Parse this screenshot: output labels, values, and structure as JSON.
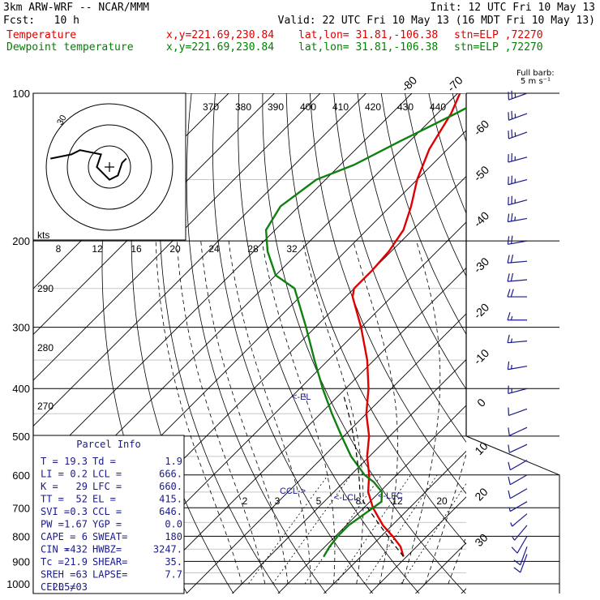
{
  "header": {
    "model": "3km ARW-WRF -- NCAR/MMM",
    "init": "Init: 12 UTC Fri 10 May 13",
    "fcst": "Fcst:   10 h",
    "valid": "Valid: 22 UTC Fri 10 May 13 (16 MDT Fri 10 May 13)",
    "temp_label": "Temperature",
    "dewp_label": "Dewpoint temperature",
    "xy": "x,y=221.69,230.84",
    "latlon": "lat,lon= 31.81,-106.38",
    "stn": "stn=ELP ,72270"
  },
  "colors": {
    "temperature": "#e00000",
    "dewpoint": "#108010",
    "barbs": "#1a1a8c",
    "panel": "#1a1a8c"
  },
  "barb_legend": {
    "line1": "Full barb:",
    "line2": "5 m s⁻¹"
  },
  "hodograph": {
    "units": "kts",
    "ring_label": "30",
    "tick_labels": [
      "8",
      "12",
      "16",
      "20",
      "24",
      "28",
      "32"
    ]
  },
  "labels": {
    "lcl": "<-LCL",
    "lfc": "<-LFC",
    "el": "<-EL",
    "ccl": "CCL->",
    "mixing_ratios": [
      "2",
      "3",
      "5",
      "8",
      "12",
      "20"
    ],
    "theta": [
      "290",
      "280",
      "270"
    ]
  },
  "parcel_info": {
    "title": "Parcel Info",
    "rows": [
      [
        "T  =",
        "19.3",
        "Td =",
        "1.9"
      ],
      [
        "LI =",
        "0.2",
        "LCL =",
        "666."
      ],
      [
        "K  =",
        "29",
        "LFC =",
        "660."
      ],
      [
        "TT =",
        "52",
        "EL =",
        "415."
      ],
      [
        "SVI =",
        "0.3",
        "CCL =",
        "646."
      ],
      [
        "PW =",
        "1.67",
        "YGP =",
        "0.0"
      ],
      [
        "CAPE =",
        "6",
        "SWEAT=",
        "180"
      ],
      [
        "CIN =",
        "-432",
        "HWBZ=",
        "3247."
      ],
      [
        "Tc =",
        "21.9",
        "SHEAR=",
        "35."
      ],
      [
        "SREH =",
        "63",
        "LAPSE=",
        "7.7"
      ],
      [
        "CELL =",
        "205/03",
        "",
        ""
      ]
    ]
  },
  "chart_data": {
    "type": "skew-t",
    "pressure_levels": [
      100,
      200,
      300,
      400,
      500,
      600,
      700,
      800,
      900,
      1000
    ],
    "isotherms_c": [
      -80,
      -70,
      -60,
      -50,
      -40,
      -30,
      -20,
      -10,
      0,
      10,
      20,
      30,
      40
    ],
    "theta_e_labels": [
      370,
      380,
      390,
      400,
      410,
      420,
      430,
      440
    ],
    "series": [
      {
        "name": "Temperature",
        "p": [
          880,
          840,
          800,
          760,
          700,
          650,
          600,
          550,
          500,
          450,
          400,
          350,
          300,
          260,
          250,
          230,
          210,
          190,
          170,
          150,
          130,
          110,
          100
        ],
        "t": [
          19.3,
          16.5,
          12.5,
          8.0,
          2.0,
          -2.5,
          -6.0,
          -10.5,
          -14.5,
          -20.0,
          -25.0,
          -31.5,
          -40.0,
          -48.5,
          -50.0,
          -50.0,
          -50.5,
          -52.0,
          -55.5,
          -60.0,
          -64.0,
          -67.0,
          -69.5
        ]
      },
      {
        "name": "Dewpoint temperature",
        "p": [
          880,
          840,
          800,
          760,
          720,
          680,
          650,
          620,
          600,
          550,
          500,
          450,
          400,
          350,
          300,
          250,
          235,
          210,
          190,
          170,
          150,
          140,
          125,
          110,
          100
        ],
        "td": [
          1.9,
          1.0,
          0.5,
          0.5,
          1.5,
          2.5,
          0.5,
          -3.5,
          -7.0,
          -14.0,
          -20.5,
          -27.5,
          -35.0,
          -43.0,
          -52.0,
          -63.0,
          -70.0,
          -77.0,
          -82.0,
          -84.0,
          -82.0,
          -77.0,
          -72.0,
          -66.0,
          -62.0
        ]
      }
    ],
    "wind_barbs": {
      "p": [
        100,
        110,
        120,
        135,
        150,
        165,
        180,
        200,
        220,
        240,
        260,
        290,
        320,
        360,
        400,
        440,
        480,
        520,
        560,
        600,
        640,
        680,
        720,
        760,
        800,
        840,
        870
      ],
      "direction_deg": [
        250,
        250,
        250,
        255,
        255,
        255,
        260,
        260,
        265,
        265,
        270,
        270,
        265,
        260,
        255,
        250,
        245,
        245,
        240,
        240,
        240,
        240,
        230,
        220,
        210,
        200,
        200
      ],
      "speed_ms": [
        25,
        25,
        25,
        25,
        25,
        25,
        25,
        20,
        20,
        20,
        20,
        15,
        15,
        15,
        15,
        10,
        10,
        10,
        10,
        10,
        10,
        5,
        5,
        5,
        10,
        10,
        10
      ]
    },
    "hodograph_u_kt": [
      -28,
      -18,
      -14,
      -4,
      -6,
      -2,
      0,
      4,
      6,
      8
    ],
    "hodograph_v_kt": [
      4,
      6,
      8,
      6,
      0,
      -4,
      -6,
      -4,
      2,
      4
    ]
  }
}
